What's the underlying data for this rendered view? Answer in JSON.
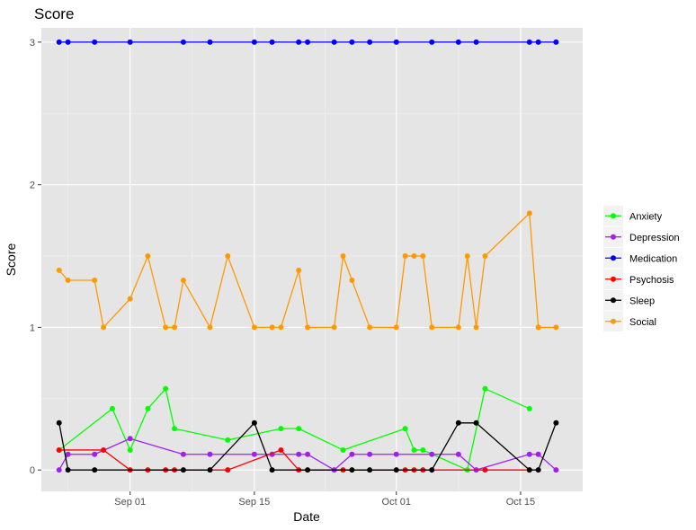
{
  "chart_data": {
    "type": "line",
    "title": "Score",
    "xlabel": "Date",
    "ylabel": "Score",
    "x_axis": {
      "type": "date",
      "range": [
        "2018-08-22",
        "2018-10-22"
      ],
      "ticks": [
        {
          "date": "2018-09-01",
          "label": "Sep 01"
        },
        {
          "date": "2018-09-15",
          "label": "Sep 15"
        },
        {
          "date": "2018-10-01",
          "label": "Oct 01"
        },
        {
          "date": "2018-10-15",
          "label": "Oct 15"
        }
      ]
    },
    "y_axis": {
      "range": [
        -0.15,
        3.1
      ],
      "ticks": [
        0,
        1,
        2,
        3
      ]
    },
    "grid": true,
    "background": "#e5e5e5",
    "legend_position": "right",
    "series": [
      {
        "name": "Anxiety",
        "color": "#00ff00",
        "points": [
          [
            "2018-08-24",
            0.14
          ],
          [
            "2018-08-30",
            0.43
          ],
          [
            "2018-09-01",
            0.14
          ],
          [
            "2018-09-03",
            0.43
          ],
          [
            "2018-09-05",
            0.57
          ],
          [
            "2018-09-06",
            0.29
          ],
          [
            "2018-09-12",
            0.21
          ],
          [
            "2018-09-18",
            0.29
          ],
          [
            "2018-09-20",
            0.29
          ],
          [
            "2018-09-25",
            0.14
          ],
          [
            "2018-10-02",
            0.29
          ],
          [
            "2018-10-03",
            0.14
          ],
          [
            "2018-10-04",
            0.14
          ],
          [
            "2018-10-09",
            0.0
          ],
          [
            "2018-10-11",
            0.57
          ],
          [
            "2018-10-16",
            0.43
          ]
        ]
      },
      {
        "name": "Depression",
        "color": "#a020f0",
        "points": [
          [
            "2018-08-24",
            0.0
          ],
          [
            "2018-08-25",
            0.11
          ],
          [
            "2018-08-28",
            0.11
          ],
          [
            "2018-09-01",
            0.22
          ],
          [
            "2018-09-07",
            0.11
          ],
          [
            "2018-09-10",
            0.11
          ],
          [
            "2018-09-15",
            0.11
          ],
          [
            "2018-09-17",
            0.11
          ],
          [
            "2018-09-20",
            0.11
          ],
          [
            "2018-09-21",
            0.11
          ],
          [
            "2018-09-24",
            0.0
          ],
          [
            "2018-09-26",
            0.11
          ],
          [
            "2018-09-28",
            0.11
          ],
          [
            "2018-10-01",
            0.11
          ],
          [
            "2018-10-05",
            0.11
          ],
          [
            "2018-10-08",
            0.11
          ],
          [
            "2018-10-10",
            0.0
          ],
          [
            "2018-10-16",
            0.11
          ],
          [
            "2018-10-17",
            0.11
          ],
          [
            "2018-10-19",
            0.0
          ]
        ]
      },
      {
        "name": "Medication",
        "color": "#0000ff",
        "points": [
          [
            "2018-08-24",
            3
          ],
          [
            "2018-08-25",
            3
          ],
          [
            "2018-08-28",
            3
          ],
          [
            "2018-09-01",
            3
          ],
          [
            "2018-09-07",
            3
          ],
          [
            "2018-09-10",
            3
          ],
          [
            "2018-09-15",
            3
          ],
          [
            "2018-09-17",
            3
          ],
          [
            "2018-09-20",
            3
          ],
          [
            "2018-09-21",
            3
          ],
          [
            "2018-09-24",
            3
          ],
          [
            "2018-09-26",
            3
          ],
          [
            "2018-09-28",
            3
          ],
          [
            "2018-10-01",
            3
          ],
          [
            "2018-10-05",
            3
          ],
          [
            "2018-10-08",
            3
          ],
          [
            "2018-10-10",
            3
          ],
          [
            "2018-10-16",
            3
          ],
          [
            "2018-10-17",
            3
          ],
          [
            "2018-10-19",
            3
          ]
        ]
      },
      {
        "name": "Psychosis",
        "color": "#ff0000",
        "points": [
          [
            "2018-08-24",
            0.14
          ],
          [
            "2018-08-29",
            0.14
          ],
          [
            "2018-09-01",
            0.0
          ],
          [
            "2018-09-03",
            0.0
          ],
          [
            "2018-09-05",
            0.0
          ],
          [
            "2018-09-06",
            0.0
          ],
          [
            "2018-09-12",
            0.0
          ],
          [
            "2018-09-18",
            0.14
          ],
          [
            "2018-09-20",
            0.0
          ],
          [
            "2018-09-25",
            0.0
          ],
          [
            "2018-10-02",
            0.0
          ],
          [
            "2018-10-03",
            0.0
          ],
          [
            "2018-10-04",
            0.0
          ],
          [
            "2018-10-11",
            0.0
          ],
          [
            "2018-10-16",
            0.0
          ]
        ]
      },
      {
        "name": "Sleep",
        "color": "#000000",
        "points": [
          [
            "2018-08-24",
            0.33
          ],
          [
            "2018-08-25",
            0.0
          ],
          [
            "2018-08-28",
            0.0
          ],
          [
            "2018-09-07",
            0.0
          ],
          [
            "2018-09-10",
            0.0
          ],
          [
            "2018-09-15",
            0.33
          ],
          [
            "2018-09-17",
            0.0
          ],
          [
            "2018-09-21",
            0.0
          ],
          [
            "2018-09-26",
            0.0
          ],
          [
            "2018-09-28",
            0.0
          ],
          [
            "2018-10-01",
            0.0
          ],
          [
            "2018-10-05",
            0.0
          ],
          [
            "2018-10-08",
            0.33
          ],
          [
            "2018-10-10",
            0.33
          ],
          [
            "2018-10-16",
            0.0
          ],
          [
            "2018-10-17",
            0.0
          ],
          [
            "2018-10-19",
            0.33
          ]
        ]
      },
      {
        "name": "Social",
        "color": "#ff9900",
        "points": [
          [
            "2018-08-24",
            1.4
          ],
          [
            "2018-08-25",
            1.33
          ],
          [
            "2018-08-28",
            1.33
          ],
          [
            "2018-08-29",
            1.0
          ],
          [
            "2018-09-01",
            1.2
          ],
          [
            "2018-09-03",
            1.5
          ],
          [
            "2018-09-05",
            1.0
          ],
          [
            "2018-09-06",
            1.0
          ],
          [
            "2018-09-07",
            1.33
          ],
          [
            "2018-09-10",
            1.0
          ],
          [
            "2018-09-12",
            1.5
          ],
          [
            "2018-09-15",
            1.0
          ],
          [
            "2018-09-17",
            1.0
          ],
          [
            "2018-09-18",
            1.0
          ],
          [
            "2018-09-20",
            1.4
          ],
          [
            "2018-09-21",
            1.0
          ],
          [
            "2018-09-24",
            1.0
          ],
          [
            "2018-09-25",
            1.5
          ],
          [
            "2018-09-26",
            1.33
          ],
          [
            "2018-09-28",
            1.0
          ],
          [
            "2018-10-01",
            1.0
          ],
          [
            "2018-10-02",
            1.5
          ],
          [
            "2018-10-03",
            1.5
          ],
          [
            "2018-10-04",
            1.5
          ],
          [
            "2018-10-05",
            1.0
          ],
          [
            "2018-10-08",
            1.0
          ],
          [
            "2018-10-09",
            1.5
          ],
          [
            "2018-10-10",
            1.0
          ],
          [
            "2018-10-11",
            1.5
          ],
          [
            "2018-10-16",
            1.8
          ],
          [
            "2018-10-17",
            1.0
          ],
          [
            "2018-10-19",
            1.0
          ]
        ]
      }
    ]
  }
}
